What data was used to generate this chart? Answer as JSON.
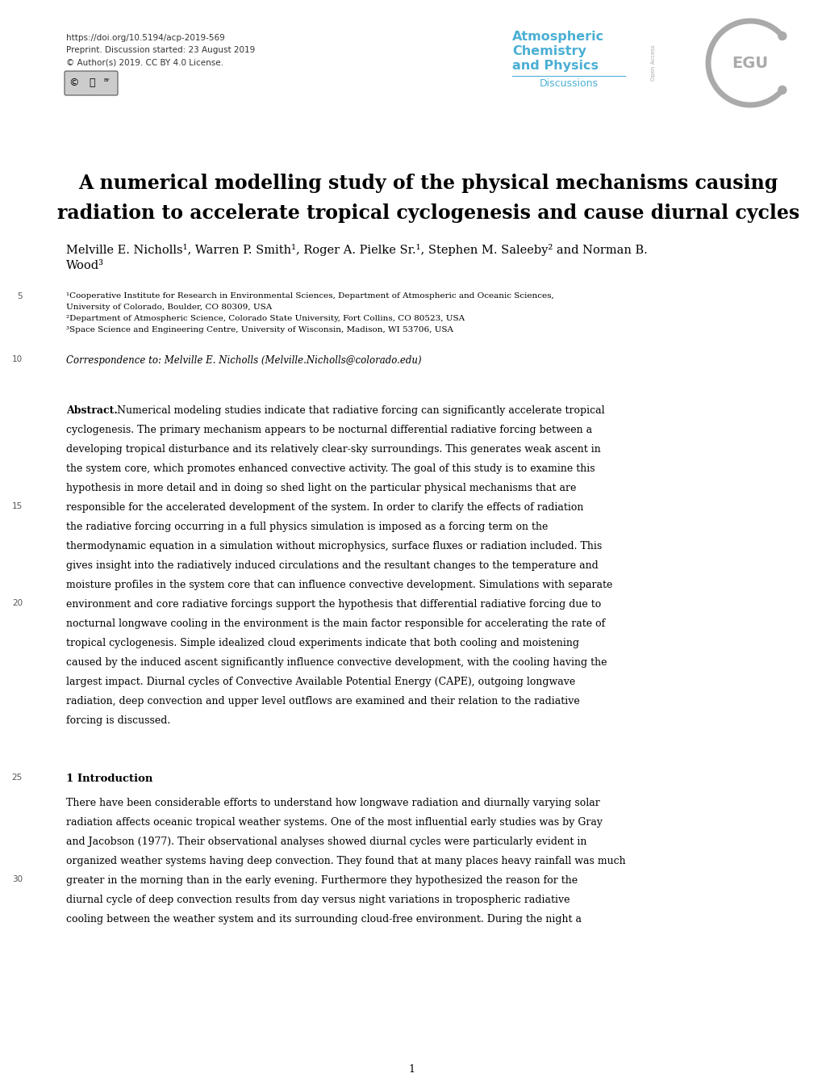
{
  "doi_line": "https://doi.org/10.5194/acp-2019-569",
  "preprint_line": "Preprint. Discussion started: 23 August 2019",
  "license_line": "© Author(s) 2019. CC BY 4.0 License.",
  "journal_name_line1": "Atmospheric",
  "journal_name_line2": "Chemistry",
  "journal_name_line3": "and Physics",
  "journal_sub": "Discussions",
  "journal_color": "#4BAFD4",
  "egu_color": "#AAAAAA",
  "title_line1": "A numerical modelling study of the physical mechanisms causing",
  "title_line2": "radiation to accelerate tropical cyclogenesis and cause diurnal cycles",
  "author_line1": "Melville E. Nicholls¹, Warren P. Smith¹, Roger A. Pielke Sr.¹, Stephen M. Saleeby² and Norman B.",
  "author_line2": "Wood³",
  "aff1a": "¹Cooperative Institute for Research in Environmental Sciences, Department of Atmospheric and Oceanic Sciences,",
  "aff1b": "University of Colorado, Boulder, CO 80309, USA",
  "aff2": "²Department of Atmospheric Science, Colorado State University, Fort Collins, CO 80523, USA",
  "aff3": "³Space Science and Engineering Centre, University of Wisconsin, Madison, WI 53706, USA",
  "correspondence": "Correspondence to: Melville E. Nicholls (Melville.Nicholls@colorado.edu)",
  "abstract_text": "Numerical modeling studies indicate that radiative forcing can significantly accelerate tropical cyclogenesis. The primary mechanism appears to be nocturnal differential radiative forcing between a developing tropical disturbance and its relatively clear-sky surroundings. This generates weak ascent in the system core, which promotes enhanced convective activity. The goal of this study is to examine this hypothesis in more detail and in doing so shed light on the particular physical mechanisms that are responsible for the accelerated development of the system. In order to clarify the effects of radiation the radiative forcing occurring in a full physics simulation is imposed as a forcing term on the thermodynamic equation in a simulation without microphysics, surface fluxes or radiation included. This gives insight into the radiatively induced circulations and the resultant changes to the temperature and moisture profiles in the system core that can influence convective development. Simulations with separate environment and core radiative forcings support the hypothesis that differential radiative forcing due to nocturnal longwave cooling in the environment is the main factor responsible for accelerating the rate of tropical cyclogenesis. Simple idealized cloud experiments indicate that both cooling and moistening caused by the induced ascent significantly influence convective development, with the cooling having the largest impact. Diurnal cycles of Convective Available Potential Energy (CAPE), outgoing longwave radiation, deep convection and upper level outflows are examined and their relation to the radiative forcing is discussed.",
  "intro_text": "There have been considerable efforts to understand how longwave radiation and diurnally varying solar radiation affects oceanic tropical weather systems. One of the most influential early studies was by Gray and Jacobson (1977). Their observational analyses showed diurnal cycles were particularly evident in organized weather systems having deep convection. They found that at many places heavy rainfall was much greater in the morning than in the early evening. Furthermore they hypothesized the reason for the diurnal cycle of deep convection results from day versus night variations in tropospheric radiative cooling between the weather system and its surrounding cloud-free environment. During the night a",
  "page_number": "1",
  "bg_color": "#FFFFFF",
  "text_color": "#000000"
}
